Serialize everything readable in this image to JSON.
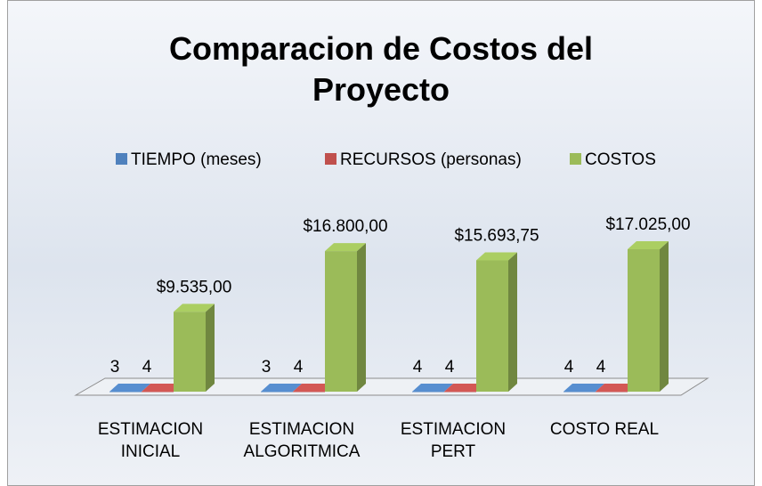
{
  "chart_data": {
    "type": "bar3d",
    "title": "Comparacion de Costos del Proyecto",
    "categories": [
      "ESTIMACION INICIAL",
      "ESTIMACION ALGORITMICA",
      "ESTIMACION PERT",
      "COSTO REAL"
    ],
    "series": [
      {
        "name": "TIEMPO (meses)",
        "color": "#4f81bd",
        "values": [
          3,
          3,
          4,
          4
        ]
      },
      {
        "name": "RECURSOS (personas)",
        "color": "#c0504d",
        "values": [
          4,
          4,
          4,
          4
        ]
      },
      {
        "name": "COSTOS",
        "color": "#9bbb59",
        "values": [
          9535,
          16800,
          15693.75,
          17025
        ],
        "value_labels": [
          "$9.535,00",
          "$16.800,00",
          "$15.693,75",
          "$17.025,00"
        ]
      }
    ],
    "legend": "top"
  }
}
